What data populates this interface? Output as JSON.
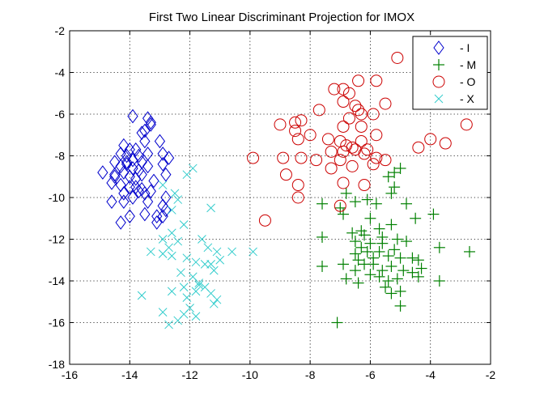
{
  "chart_data": {
    "type": "scatter",
    "title": "First Two Linear Discriminant Projection for IMOX",
    "xlabel": "",
    "ylabel": "",
    "xlim": [
      -16,
      -2
    ],
    "ylim": [
      -18,
      -2
    ],
    "xticks": [
      -16,
      -14,
      -12,
      -10,
      -8,
      -6,
      -4,
      -2
    ],
    "yticks": [
      -18,
      -16,
      -14,
      -12,
      -10,
      -8,
      -6,
      -4,
      -2
    ],
    "xtick_labels": [
      "-16",
      "-14",
      "-12",
      "-10",
      "-8",
      "-6",
      "-4",
      "-2"
    ],
    "ytick_labels": [
      "-18",
      "-16",
      "-14",
      "-12",
      "-10",
      "-8",
      "-6",
      "-4",
      "-2"
    ],
    "grid": true,
    "legend_position": "top-right",
    "series": [
      {
        "name": "- I",
        "marker": "diamond",
        "color": "#0000cc",
        "points": [
          [
            -13.9,
            -6.1
          ],
          [
            -13.4,
            -6.2
          ],
          [
            -13.3,
            -6.4
          ],
          [
            -13.5,
            -6.8
          ],
          [
            -13.3,
            -6.5
          ],
          [
            -13.6,
            -6.9
          ],
          [
            -13.5,
            -7.3
          ],
          [
            -13.0,
            -7.3
          ],
          [
            -14.2,
            -7.5
          ],
          [
            -14.0,
            -7.7
          ],
          [
            -13.8,
            -7.7
          ],
          [
            -13.4,
            -7.9
          ],
          [
            -12.9,
            -7.9
          ],
          [
            -14.3,
            -7.9
          ],
          [
            -14.1,
            -8.0
          ],
          [
            -13.9,
            -8.2
          ],
          [
            -13.7,
            -8.0
          ],
          [
            -13.6,
            -8.3
          ],
          [
            -14.5,
            -8.3
          ],
          [
            -14.3,
            -8.5
          ],
          [
            -14.1,
            -8.4
          ],
          [
            -13.9,
            -8.6
          ],
          [
            -13.7,
            -8.7
          ],
          [
            -13.4,
            -8.5
          ],
          [
            -12.9,
            -8.4
          ],
          [
            -12.7,
            -8.1
          ],
          [
            -14.9,
            -8.8
          ],
          [
            -14.5,
            -8.9
          ],
          [
            -14.2,
            -8.8
          ],
          [
            -14.0,
            -9.0
          ],
          [
            -13.8,
            -9.1
          ],
          [
            -13.6,
            -8.9
          ],
          [
            -13.2,
            -9.2
          ],
          [
            -12.8,
            -8.9
          ],
          [
            -14.6,
            -9.3
          ],
          [
            -14.3,
            -9.4
          ],
          [
            -14.0,
            -9.5
          ],
          [
            -13.8,
            -9.5
          ],
          [
            -13.7,
            -9.7
          ],
          [
            -13.6,
            -9.6
          ],
          [
            -13.5,
            -9.8
          ],
          [
            -13.3,
            -9.7
          ],
          [
            -14.2,
            -9.8
          ],
          [
            -13.9,
            -10.0
          ],
          [
            -12.8,
            -10.0
          ],
          [
            -14.6,
            -10.2
          ],
          [
            -14.2,
            -10.2
          ],
          [
            -13.4,
            -10.2
          ],
          [
            -12.9,
            -10.4
          ],
          [
            -12.8,
            -10.6
          ],
          [
            -13.5,
            -10.8
          ],
          [
            -13.1,
            -10.9
          ],
          [
            -12.9,
            -10.9
          ],
          [
            -14.0,
            -10.9
          ],
          [
            -14.3,
            -11.2
          ],
          [
            -13.1,
            -11.2
          ],
          [
            -14.5,
            -9.0
          ],
          [
            -14.1,
            -8.3
          ]
        ]
      },
      {
        "name": "- M",
        "marker": "plus",
        "color": "#008000",
        "points": [
          [
            -5.2,
            -8.8
          ],
          [
            -5.0,
            -8.6
          ],
          [
            -5.4,
            -9.0
          ],
          [
            -5.2,
            -9.5
          ],
          [
            -5.3,
            -9.8
          ],
          [
            -6.8,
            -9.8
          ],
          [
            -6.5,
            -10.2
          ],
          [
            -6.1,
            -10.1
          ],
          [
            -5.8,
            -10.3
          ],
          [
            -7.0,
            -10.5
          ],
          [
            -7.6,
            -10.3
          ],
          [
            -4.8,
            -10.3
          ],
          [
            -6.9,
            -10.8
          ],
          [
            -6.0,
            -11.0
          ],
          [
            -4.5,
            -11.0
          ],
          [
            -5.7,
            -11.5
          ],
          [
            -5.3,
            -11.3
          ],
          [
            -3.9,
            -10.8
          ],
          [
            -6.6,
            -11.7
          ],
          [
            -6.3,
            -11.6
          ],
          [
            -5.6,
            -11.9
          ],
          [
            -5.1,
            -12.0
          ],
          [
            -7.6,
            -11.9
          ],
          [
            -6.5,
            -12.1
          ],
          [
            -6.3,
            -12.4
          ],
          [
            -6.0,
            -12.2
          ],
          [
            -5.6,
            -12.2
          ],
          [
            -5.2,
            -12.5
          ],
          [
            -4.8,
            -12.1
          ],
          [
            -3.7,
            -12.4
          ],
          [
            -2.7,
            -12.6
          ],
          [
            -6.5,
            -12.7
          ],
          [
            -6.1,
            -12.6
          ],
          [
            -5.9,
            -12.9
          ],
          [
            -5.7,
            -12.6
          ],
          [
            -5.4,
            -12.8
          ],
          [
            -5.0,
            -12.9
          ],
          [
            -4.6,
            -12.9
          ],
          [
            -4.4,
            -13.0
          ],
          [
            -6.4,
            -13.0
          ],
          [
            -6.2,
            -13.2
          ],
          [
            -5.9,
            -13.2
          ],
          [
            -5.6,
            -13.5
          ],
          [
            -5.3,
            -13.3
          ],
          [
            -4.9,
            -13.5
          ],
          [
            -4.3,
            -13.4
          ],
          [
            -7.6,
            -13.3
          ],
          [
            -6.9,
            -13.2
          ],
          [
            -6.5,
            -13.5
          ],
          [
            -6.0,
            -13.7
          ],
          [
            -5.7,
            -13.8
          ],
          [
            -5.4,
            -14.0
          ],
          [
            -5.1,
            -13.9
          ],
          [
            -4.6,
            -13.6
          ],
          [
            -4.4,
            -13.8
          ],
          [
            -6.8,
            -13.9
          ],
          [
            -6.4,
            -14.1
          ],
          [
            -5.5,
            -14.3
          ],
          [
            -5.0,
            -14.5
          ],
          [
            -3.7,
            -14.0
          ],
          [
            -5.3,
            -14.6
          ],
          [
            -5.0,
            -15.2
          ],
          [
            -6.2,
            -11.8
          ],
          [
            -7.1,
            -16.0
          ]
        ]
      },
      {
        "name": "- O",
        "marker": "circle",
        "color": "#cc0000",
        "points": [
          [
            -6.9,
            -4.8
          ],
          [
            -7.2,
            -4.8
          ],
          [
            -6.4,
            -4.4
          ],
          [
            -5.8,
            -4.4
          ],
          [
            -5.1,
            -3.3
          ],
          [
            -6.7,
            -5.0
          ],
          [
            -6.9,
            -5.4
          ],
          [
            -6.5,
            -5.6
          ],
          [
            -5.5,
            -5.5
          ],
          [
            -6.4,
            -5.8
          ],
          [
            -6.3,
            -6.0
          ],
          [
            -5.9,
            -6.0
          ],
          [
            -7.7,
            -5.8
          ],
          [
            -8.3,
            -6.3
          ],
          [
            -9.0,
            -6.5
          ],
          [
            -8.5,
            -6.4
          ],
          [
            -6.9,
            -6.6
          ],
          [
            -6.3,
            -6.6
          ],
          [
            -8.5,
            -6.8
          ],
          [
            -8.0,
            -7.0
          ],
          [
            -7.4,
            -7.2
          ],
          [
            -7.0,
            -7.3
          ],
          [
            -6.8,
            -7.5
          ],
          [
            -6.3,
            -7.3
          ],
          [
            -5.8,
            -7.0
          ],
          [
            -8.4,
            -7.2
          ],
          [
            -6.9,
            -7.8
          ],
          [
            -6.6,
            -7.6
          ],
          [
            -6.1,
            -7.7
          ],
          [
            -6.2,
            -7.9
          ],
          [
            -5.8,
            -8.1
          ],
          [
            -5.5,
            -8.2
          ],
          [
            -7.0,
            -8.2
          ],
          [
            -7.8,
            -8.2
          ],
          [
            -8.3,
            -8.1
          ],
          [
            -8.9,
            -8.1
          ],
          [
            -9.9,
            -8.1
          ],
          [
            -6.6,
            -8.5
          ],
          [
            -5.9,
            -8.4
          ],
          [
            -7.3,
            -8.6
          ],
          [
            -8.8,
            -8.9
          ],
          [
            -6.9,
            -9.3
          ],
          [
            -6.2,
            -9.4
          ],
          [
            -8.4,
            -9.4
          ],
          [
            -8.4,
            -10.0
          ],
          [
            -7.0,
            -10.4
          ],
          [
            -9.5,
            -11.1
          ],
          [
            -3.5,
            -7.4
          ],
          [
            -4.0,
            -7.2
          ],
          [
            -4.4,
            -7.6
          ],
          [
            -2.8,
            -6.5
          ],
          [
            -6.7,
            -6.2
          ],
          [
            -6.5,
            -7.7
          ],
          [
            -7.3,
            -7.8
          ]
        ]
      },
      {
        "name": "- X",
        "marker": "x",
        "color": "#33cccc",
        "points": [
          [
            -11.9,
            -8.6
          ],
          [
            -12.1,
            -8.9
          ],
          [
            -12.9,
            -9.4
          ],
          [
            -12.5,
            -9.8
          ],
          [
            -12.4,
            -10.1
          ],
          [
            -12.6,
            -10.6
          ],
          [
            -11.3,
            -10.5
          ],
          [
            -12.2,
            -11.3
          ],
          [
            -12.6,
            -11.7
          ],
          [
            -12.9,
            -12.0
          ],
          [
            -12.4,
            -12.1
          ],
          [
            -12.7,
            -12.4
          ],
          [
            -12.9,
            -12.7
          ],
          [
            -13.3,
            -12.6
          ],
          [
            -12.6,
            -12.8
          ],
          [
            -11.6,
            -12.0
          ],
          [
            -11.4,
            -12.4
          ],
          [
            -11.1,
            -12.6
          ],
          [
            -11.0,
            -13.0
          ],
          [
            -10.6,
            -12.6
          ],
          [
            -9.9,
            -12.6
          ],
          [
            -12.1,
            -12.9
          ],
          [
            -11.8,
            -13.1
          ],
          [
            -11.5,
            -13.2
          ],
          [
            -11.2,
            -13.5
          ],
          [
            -11.9,
            -13.8
          ],
          [
            -11.7,
            -14.1
          ],
          [
            -11.5,
            -14.3
          ],
          [
            -11.8,
            -14.5
          ],
          [
            -12.2,
            -14.3
          ],
          [
            -12.1,
            -14.8
          ],
          [
            -12.6,
            -14.5
          ],
          [
            -13.6,
            -14.7
          ],
          [
            -11.3,
            -14.6
          ],
          [
            -11.1,
            -14.9
          ],
          [
            -11.2,
            -15.1
          ],
          [
            -12.0,
            -15.3
          ],
          [
            -12.2,
            -15.6
          ],
          [
            -12.9,
            -15.5
          ],
          [
            -11.8,
            -15.7
          ],
          [
            -12.7,
            -16.1
          ],
          [
            -12.4,
            -15.9
          ],
          [
            -11.7,
            -14.2
          ],
          [
            -11.3,
            -13.2
          ],
          [
            -12.3,
            -13.6
          ]
        ]
      }
    ]
  }
}
